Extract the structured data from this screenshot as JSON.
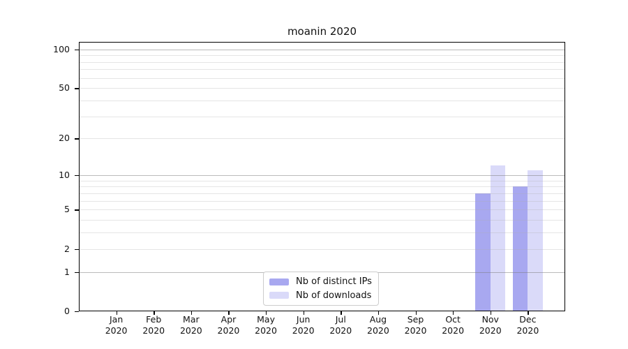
{
  "title": "moanin 2020",
  "chart_data": {
    "type": "bar",
    "title": "moanin 2020",
    "categories": [
      "Jan 2020",
      "Feb 2020",
      "Mar 2020",
      "Apr 2020",
      "May 2020",
      "Jun 2020",
      "Jul 2020",
      "Aug 2020",
      "Sep 2020",
      "Oct 2020",
      "Nov 2020",
      "Dec 2020"
    ],
    "x_tick_months": [
      "Jan",
      "Feb",
      "Mar",
      "Apr",
      "May",
      "Jun",
      "Jul",
      "Aug",
      "Sep",
      "Oct",
      "Nov",
      "Dec"
    ],
    "x_tick_year": "2020",
    "series": [
      {
        "name": "Nb of distinct IPs",
        "color": "#a8a8f0",
        "values": [
          0,
          0,
          0,
          0,
          0,
          0,
          0,
          0,
          0,
          0,
          7,
          8
        ]
      },
      {
        "name": "Nb of downloads",
        "color": "#dadaf9",
        "values": [
          0,
          0,
          0,
          0,
          0,
          0,
          0,
          0,
          0,
          0,
          12,
          11
        ]
      }
    ],
    "y_axis": {
      "scale": "log1p",
      "ticks": [
        0,
        1,
        2,
        5,
        10,
        20,
        50,
        100
      ],
      "range": [
        0,
        114
      ]
    },
    "grid": "horizontal, log minor lines",
    "legend_position": "bottom-center",
    "colors": {
      "axis": "#000000",
      "grid_major": "#c2c2c2",
      "grid_minor": "#e7e7e7",
      "legend_border": "#cccccc",
      "background": "#ffffff"
    }
  }
}
